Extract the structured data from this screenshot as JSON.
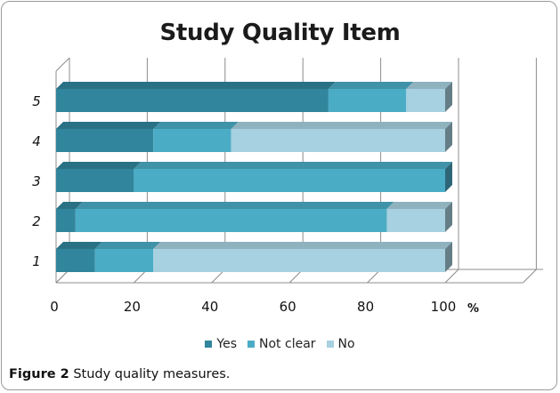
{
  "chart_data": {
    "type": "bar",
    "orientation": "horizontal",
    "stacked": true,
    "three_d": true,
    "title": "Study Quality Item",
    "categories": [
      "1",
      "2",
      "3",
      "4",
      "5"
    ],
    "series": [
      {
        "name": "Yes",
        "color": "#31859c",
        "values": [
          10,
          5,
          20,
          25,
          70
        ]
      },
      {
        "name": "Not clear",
        "color": "#4bacc6",
        "values": [
          15,
          80,
          80,
          20,
          20
        ]
      },
      {
        "name": "No",
        "color": "#a7d1e0",
        "values": [
          75,
          15,
          0,
          55,
          10
        ]
      }
    ],
    "x_ticks": [
      "0",
      "20",
      "40",
      "60",
      "80",
      "100"
    ],
    "x_unit": "%",
    "xlim": [
      0,
      100
    ],
    "grid": true,
    "legend_position": "bottom"
  },
  "caption": {
    "label": "Figure 2",
    "text": "Study quality measures."
  }
}
